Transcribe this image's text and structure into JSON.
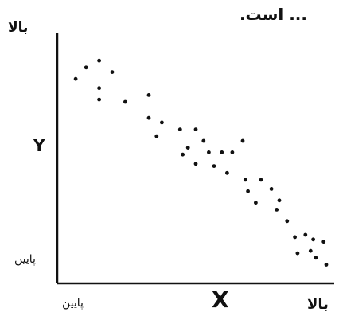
{
  "heading": "... است.",
  "chart_data": {
    "type": "scatter",
    "title": "",
    "xlabel": "X",
    "ylabel": "Y",
    "x_tick_labels": {
      "low": "پایین",
      "high": "بالا"
    },
    "y_tick_labels": {
      "low": "پایین",
      "high": "بالا"
    },
    "xlim": [
      0,
      100
    ],
    "ylim": [
      0,
      100
    ],
    "grid": false,
    "points": [
      {
        "x": 4,
        "y": 85
      },
      {
        "x": 8,
        "y": 90
      },
      {
        "x": 13,
        "y": 93
      },
      {
        "x": 18,
        "y": 88
      },
      {
        "x": 13,
        "y": 81
      },
      {
        "x": 13,
        "y": 76
      },
      {
        "x": 23,
        "y": 75
      },
      {
        "x": 32,
        "y": 78
      },
      {
        "x": 32,
        "y": 68
      },
      {
        "x": 37,
        "y": 66
      },
      {
        "x": 35,
        "y": 60
      },
      {
        "x": 44,
        "y": 63
      },
      {
        "x": 47,
        "y": 55
      },
      {
        "x": 50,
        "y": 63
      },
      {
        "x": 53,
        "y": 58
      },
      {
        "x": 55,
        "y": 53
      },
      {
        "x": 60,
        "y": 53
      },
      {
        "x": 45,
        "y": 52
      },
      {
        "x": 50,
        "y": 48
      },
      {
        "x": 57,
        "y": 47
      },
      {
        "x": 64,
        "y": 53
      },
      {
        "x": 68,
        "y": 58
      },
      {
        "x": 62,
        "y": 44
      },
      {
        "x": 69,
        "y": 41
      },
      {
        "x": 70,
        "y": 36
      },
      {
        "x": 75,
        "y": 41
      },
      {
        "x": 79,
        "y": 37
      },
      {
        "x": 82,
        "y": 32
      },
      {
        "x": 73,
        "y": 31
      },
      {
        "x": 81,
        "y": 28
      },
      {
        "x": 85,
        "y": 23
      },
      {
        "x": 88,
        "y": 16
      },
      {
        "x": 92,
        "y": 17
      },
      {
        "x": 95,
        "y": 15
      },
      {
        "x": 89,
        "y": 9
      },
      {
        "x": 94,
        "y": 10
      },
      {
        "x": 96,
        "y": 7
      },
      {
        "x": 99,
        "y": 14
      },
      {
        "x": 100,
        "y": 4
      }
    ]
  }
}
